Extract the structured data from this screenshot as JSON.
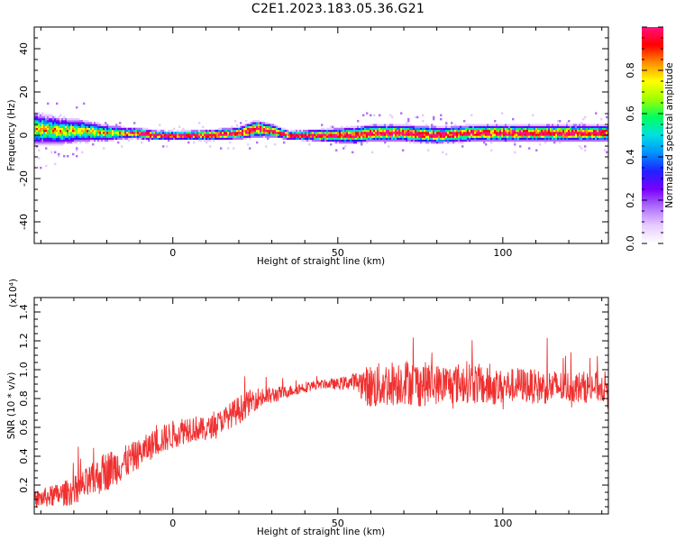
{
  "figure": {
    "title": "C2E1.2023.183.05.36.G21"
  },
  "chart_data": [
    {
      "type": "heatmap",
      "panel": "spectrogram",
      "xlabel": "Height of straight line (km)",
      "ylabel": "Frequency (Hz)",
      "xlim": [
        -42,
        132
      ],
      "ylim": [
        -50,
        50
      ],
      "xticks": [
        0,
        50,
        100
      ],
      "yticks": [
        -40,
        -20,
        0,
        20,
        40
      ],
      "colorbar": {
        "label": "Normalized spectral amplitude",
        "range": [
          0.0,
          1.0
        ],
        "ticks": [
          "0.0",
          "0.2",
          "0.4",
          "0.6",
          "0.8"
        ],
        "colors": [
          "#ffffff",
          "#e6ccff",
          "#b070ff",
          "#7a00ff",
          "#2020ff",
          "#0090ff",
          "#00e0e0",
          "#00ff60",
          "#a0ff00",
          "#ffff00",
          "#ff9000",
          "#ff0000",
          "#ff1080"
        ]
      },
      "band_center": [
        [
          -42,
          3
        ],
        [
          -35,
          2
        ],
        [
          -28,
          2
        ],
        [
          -20,
          1
        ],
        [
          -12,
          1
        ],
        [
          -5,
          0
        ],
        [
          0,
          0
        ],
        [
          10,
          0
        ],
        [
          20,
          1
        ],
        [
          25,
          3
        ],
        [
          30,
          2
        ],
        [
          35,
          0
        ],
        [
          45,
          0
        ],
        [
          55,
          0
        ],
        [
          60,
          1
        ],
        [
          70,
          1
        ],
        [
          80,
          0
        ],
        [
          90,
          1
        ],
        [
          100,
          1
        ],
        [
          110,
          1
        ],
        [
          120,
          1
        ],
        [
          132,
          1
        ]
      ],
      "band_halfwidth": [
        [
          -42,
          8
        ],
        [
          -30,
          6
        ],
        [
          -15,
          3
        ],
        [
          0,
          2
        ],
        [
          20,
          3
        ],
        [
          25,
          4
        ],
        [
          35,
          2
        ],
        [
          55,
          4
        ],
        [
          75,
          4
        ],
        [
          100,
          4
        ],
        [
          132,
          4
        ]
      ],
      "grid": false
    },
    {
      "type": "line",
      "panel": "snr",
      "xlabel": "Height of straight line (km)",
      "ylabel": "SNR (10 * v/v)",
      "yscale_label": "(x10⁴)",
      "xlim": [
        -42,
        132
      ],
      "ylim": [
        0.0,
        1.5
      ],
      "xticks": [
        0,
        50,
        100
      ],
      "yticks": [
        "0.2",
        "0.4",
        "0.6",
        "0.8",
        "1.0",
        "1.2",
        "1.4"
      ],
      "color": "#f03030",
      "grid": false,
      "series": [
        {
          "x": [
            -42,
            -35,
            -30,
            -25,
            -20,
            -15,
            -10,
            -5,
            0,
            5,
            10,
            15,
            20,
            25,
            30,
            35,
            40,
            45,
            50,
            55,
            60,
            65,
            70,
            75,
            80,
            85,
            90,
            95,
            100,
            105,
            110,
            115,
            120,
            125,
            132
          ],
          "values": [
            0.1,
            0.13,
            0.16,
            0.22,
            0.3,
            0.35,
            0.42,
            0.5,
            0.55,
            0.6,
            0.58,
            0.65,
            0.72,
            0.8,
            0.82,
            0.85,
            0.88,
            0.9,
            0.9,
            0.92,
            0.88,
            0.9,
            0.92,
            0.9,
            0.9,
            0.9,
            0.92,
            0.88,
            0.88,
            0.9,
            0.88,
            0.88,
            0.88,
            0.88,
            0.88
          ],
          "spread": [
            0.06,
            0.08,
            0.1,
            0.12,
            0.14,
            0.12,
            0.1,
            0.1,
            0.1,
            0.1,
            0.08,
            0.08,
            0.1,
            0.08,
            0.06,
            0.04,
            0.04,
            0.03,
            0.04,
            0.06,
            0.16,
            0.16,
            0.16,
            0.16,
            0.14,
            0.14,
            0.15,
            0.14,
            0.12,
            0.12,
            0.12,
            0.12,
            0.11,
            0.11,
            0.11
          ]
        }
      ]
    }
  ]
}
